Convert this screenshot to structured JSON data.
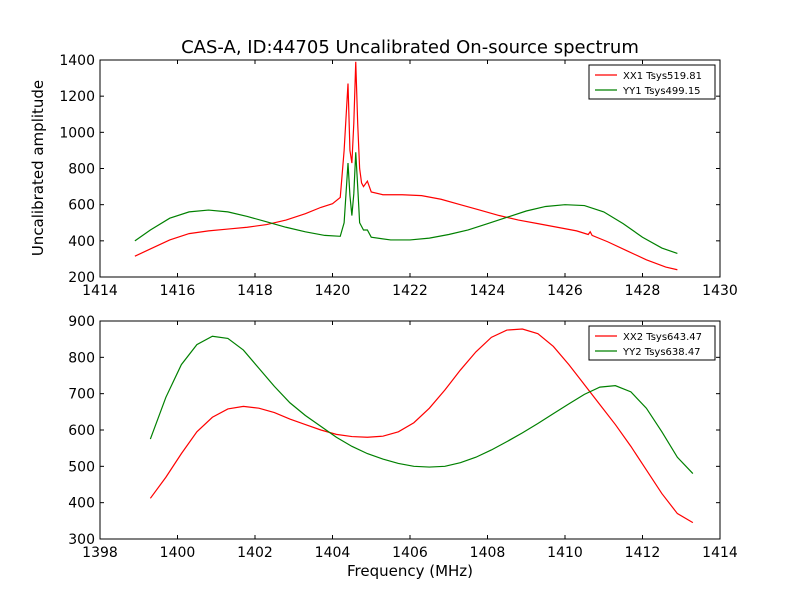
{
  "figure": {
    "title": "CAS-A, ID:44705 Uncalibrated On-source spectrum",
    "xlabel": "Frequency (MHz)"
  },
  "chart_data": [
    {
      "type": "line",
      "title": "CAS-A, ID:44705 Uncalibrated On-source spectrum",
      "xlabel": "",
      "ylabel": "Uncalibrated amplitude",
      "xlim": [
        1414,
        1430
      ],
      "ylim": [
        200,
        1400
      ],
      "xticks": [
        1414,
        1416,
        1418,
        1420,
        1422,
        1424,
        1426,
        1428,
        1430
      ],
      "yticks": [
        200,
        400,
        600,
        800,
        1000,
        1200,
        1400
      ],
      "legend_position": "top-right",
      "grid": false,
      "series": [
        {
          "name": "XX1 Tsys519.81",
          "color": "#ff0000",
          "x": [
            1414.9,
            1415.3,
            1415.8,
            1416.3,
            1416.8,
            1417.3,
            1417.8,
            1418.3,
            1418.8,
            1419.3,
            1419.7,
            1420.0,
            1420.2,
            1420.3,
            1420.4,
            1420.45,
            1420.5,
            1420.55,
            1420.6,
            1420.65,
            1420.7,
            1420.75,
            1420.8,
            1420.9,
            1421.0,
            1421.3,
            1421.8,
            1422.3,
            1422.8,
            1423.3,
            1423.8,
            1424.3,
            1424.8,
            1425.3,
            1425.8,
            1426.3,
            1426.6,
            1426.65,
            1426.7,
            1427.1,
            1427.6,
            1428.1,
            1428.6,
            1428.9
          ],
          "y": [
            315,
            355,
            405,
            440,
            455,
            465,
            475,
            490,
            515,
            550,
            585,
            605,
            640,
            900,
            1270,
            900,
            830,
            1050,
            1390,
            1050,
            800,
            720,
            700,
            730,
            670,
            655,
            655,
            650,
            630,
            600,
            570,
            540,
            515,
            495,
            475,
            455,
            435,
            450,
            430,
            395,
            345,
            295,
            255,
            240
          ]
        },
        {
          "name": "YY1 Tsys499.15",
          "color": "#008000",
          "x": [
            1414.9,
            1415.3,
            1415.8,
            1416.3,
            1416.8,
            1417.3,
            1417.8,
            1418.3,
            1418.8,
            1419.3,
            1419.8,
            1420.2,
            1420.3,
            1420.4,
            1420.45,
            1420.5,
            1420.55,
            1420.6,
            1420.65,
            1420.7,
            1420.8,
            1420.9,
            1421.0,
            1421.5,
            1422.0,
            1422.5,
            1423.0,
            1423.5,
            1424.0,
            1424.5,
            1425.0,
            1425.5,
            1426.0,
            1426.5,
            1427.0,
            1427.5,
            1428.0,
            1428.5,
            1428.9
          ],
          "y": [
            400,
            460,
            525,
            560,
            570,
            560,
            535,
            505,
            475,
            450,
            430,
            425,
            500,
            830,
            650,
            540,
            660,
            890,
            700,
            500,
            460,
            460,
            420,
            405,
            405,
            415,
            435,
            460,
            495,
            530,
            565,
            590,
            600,
            595,
            560,
            495,
            420,
            360,
            330
          ]
        }
      ]
    },
    {
      "type": "line",
      "title": "",
      "xlabel": "Frequency (MHz)",
      "ylabel": "",
      "xlim": [
        1398,
        1414
      ],
      "ylim": [
        300,
        900
      ],
      "xticks": [
        1398,
        1400,
        1402,
        1404,
        1406,
        1408,
        1410,
        1412,
        1414
      ],
      "yticks": [
        300,
        400,
        500,
        600,
        700,
        800,
        900
      ],
      "legend_position": "top-right",
      "grid": false,
      "series": [
        {
          "name": "XX2 Tsys643.47",
          "color": "#ff0000",
          "x": [
            1399.3,
            1399.7,
            1400.1,
            1400.5,
            1400.9,
            1401.3,
            1401.7,
            1402.1,
            1402.5,
            1402.9,
            1403.3,
            1403.7,
            1404.1,
            1404.5,
            1404.9,
            1405.3,
            1405.7,
            1406.1,
            1406.5,
            1406.9,
            1407.3,
            1407.7,
            1408.1,
            1408.5,
            1408.9,
            1409.3,
            1409.7,
            1410.1,
            1410.5,
            1410.9,
            1411.3,
            1411.7,
            1412.1,
            1412.5,
            1412.9,
            1413.3
          ],
          "y": [
            412,
            470,
            535,
            595,
            635,
            658,
            665,
            660,
            648,
            630,
            615,
            600,
            588,
            582,
            580,
            583,
            595,
            620,
            660,
            710,
            765,
            815,
            855,
            875,
            878,
            865,
            830,
            780,
            725,
            670,
            615,
            555,
            490,
            425,
            370,
            345
          ]
        },
        {
          "name": "YY2 Tsys638.47",
          "color": "#008000",
          "x": [
            1399.3,
            1399.7,
            1400.1,
            1400.5,
            1400.9,
            1401.3,
            1401.7,
            1402.1,
            1402.5,
            1402.9,
            1403.3,
            1403.7,
            1404.1,
            1404.5,
            1404.9,
            1405.3,
            1405.7,
            1406.1,
            1406.5,
            1406.9,
            1407.3,
            1407.7,
            1408.1,
            1408.5,
            1408.9,
            1409.3,
            1409.7,
            1410.1,
            1410.5,
            1410.9,
            1411.3,
            1411.7,
            1412.1,
            1412.5,
            1412.9,
            1413.3
          ],
          "y": [
            575,
            690,
            780,
            835,
            858,
            852,
            820,
            770,
            720,
            675,
            640,
            610,
            580,
            555,
            535,
            520,
            508,
            500,
            498,
            500,
            510,
            525,
            545,
            568,
            592,
            618,
            645,
            672,
            698,
            718,
            722,
            705,
            660,
            595,
            525,
            480
          ]
        }
      ]
    }
  ]
}
